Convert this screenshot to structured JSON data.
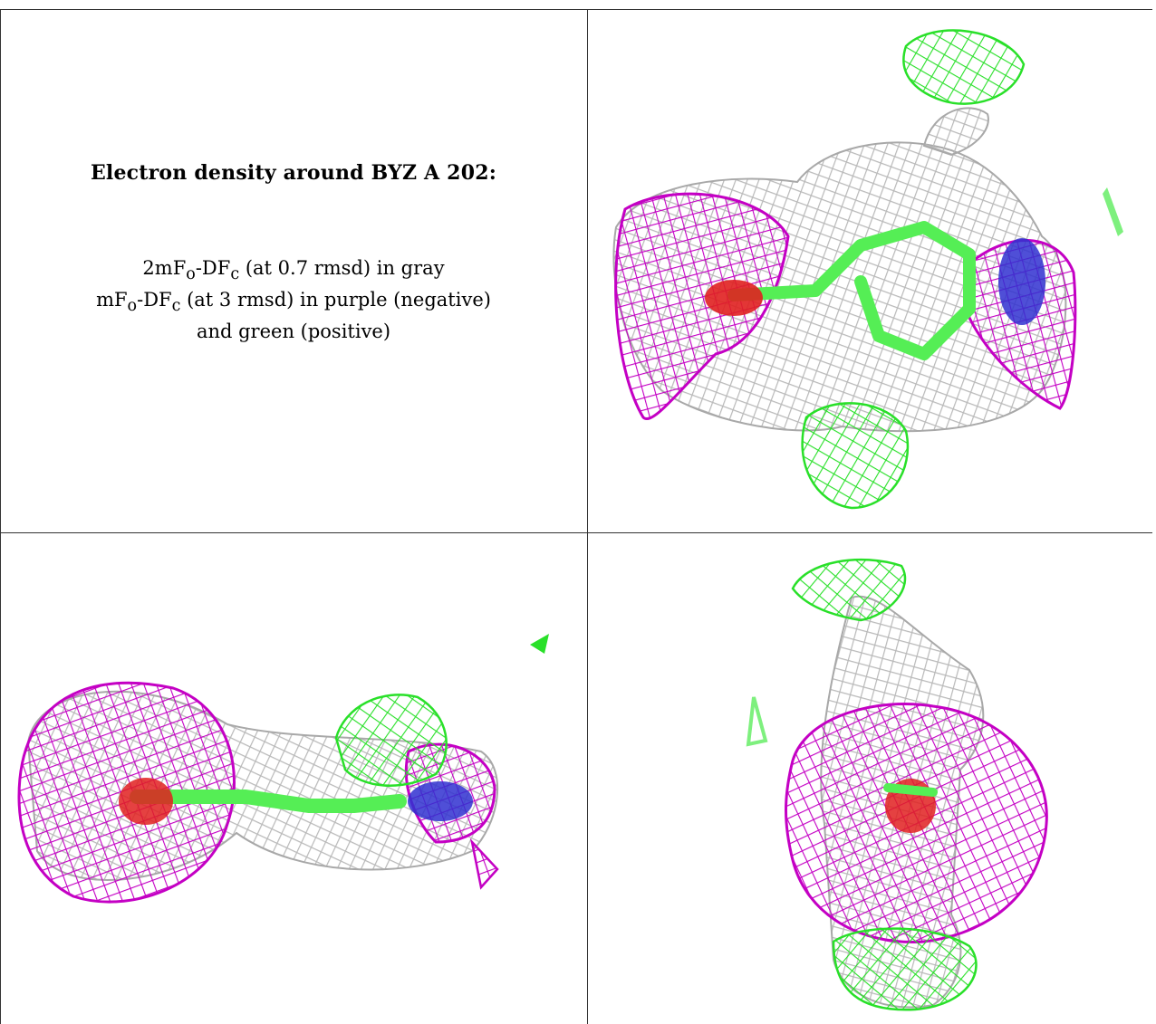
{
  "caption": {
    "title": "Electron density around BYZ A 202:",
    "line1": {
      "a": "2mF",
      "a_sub": "o",
      "b": "-DF",
      "b_sub": "c",
      "rest": " (at 0.7 rmsd) in gray"
    },
    "line2": {
      "a": "mF",
      "a_sub": "o",
      "b": "-DF",
      "b_sub": "c",
      "rest": " (at 3 rmsd) in purple (negative)"
    },
    "line3": "and green (positive)"
  },
  "colors": {
    "gray_mesh": "#b9b9b9",
    "negative_mesh": "#c400c4",
    "positive_mesh": "#29e029",
    "ligand_carbon": "#55ee55",
    "oxygen": "#e02020",
    "nitrogen": "#3030d0"
  },
  "panels": [
    {
      "view": "top-right",
      "icon": "electron-density-view-1"
    },
    {
      "view": "bottom-left",
      "icon": "electron-density-view-2"
    },
    {
      "view": "bottom-right",
      "icon": "electron-density-view-3"
    }
  ]
}
